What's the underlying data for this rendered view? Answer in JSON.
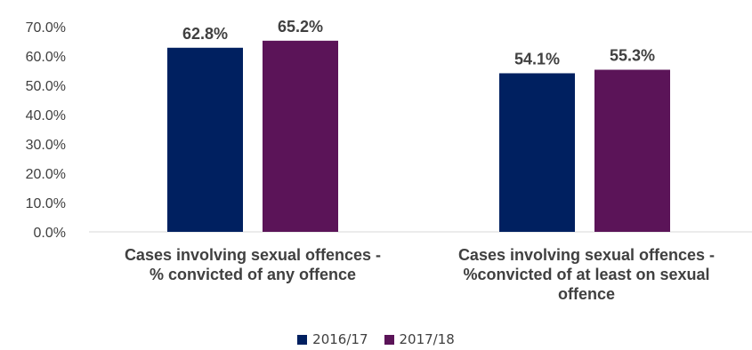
{
  "chart_data": {
    "type": "bar",
    "categories": [
      "Cases involving sexual offences - % convicted of any offence",
      "Cases involving sexual offences - %convicted of at least on sexual offence"
    ],
    "category_label_lines": [
      [
        "Cases involving sexual offences -",
        "% convicted of any offence"
      ],
      [
        "Cases involving sexual offences -",
        "%convicted of at least on sexual",
        "offence"
      ]
    ],
    "series": [
      {
        "name": "2016/17",
        "values": [
          62.8,
          54.1
        ],
        "labels": [
          "62.8%",
          "54.1%"
        ],
        "color": "#002060"
      },
      {
        "name": "2017/18",
        "values": [
          65.2,
          55.3
        ],
        "labels": [
          "65.2%",
          "55.3%"
        ],
        "color": "#5b1458"
      }
    ],
    "ylim": [
      0,
      70
    ],
    "yticks": [
      "0.0%",
      "10.0%",
      "20.0%",
      "30.0%",
      "40.0%",
      "50.0%",
      "60.0%",
      "70.0%"
    ],
    "grid": false,
    "legend_position": "bottom",
    "title": "",
    "xlabel": "",
    "ylabel": ""
  }
}
